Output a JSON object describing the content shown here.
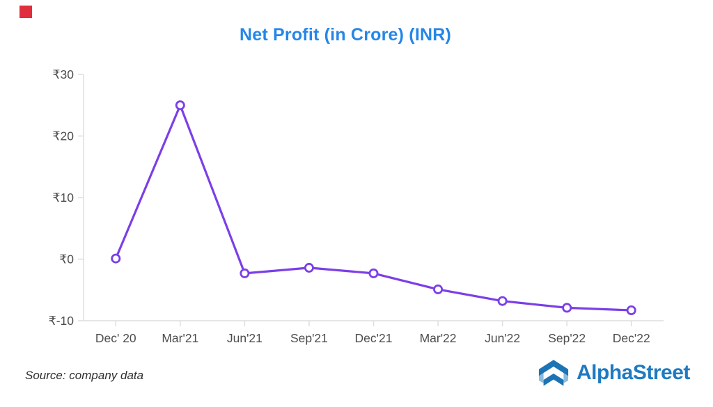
{
  "page": {
    "background": "#ffffff",
    "corner_marker_color": "#e12e3e"
  },
  "chart_data": {
    "type": "line",
    "title": "Net Profit (in Crore) (INR)",
    "categories": [
      "Dec' 20",
      "Mar'21",
      "Jun'21",
      "Sep'21",
      "Dec'21",
      "Mar'22",
      "Jun'22",
      "Sep'22",
      "Dec'22"
    ],
    "values": [
      0.1,
      25,
      -2.3,
      -1.4,
      -2.3,
      -4.9,
      -6.8,
      -7.9,
      -8.3
    ],
    "series_name": "Net Profit",
    "currency_prefix": "₹",
    "xlabel": "",
    "ylabel": "",
    "ylim": [
      -10,
      30
    ],
    "yticks": [
      {
        "value": 30,
        "label": "₹30"
      },
      {
        "value": 20,
        "label": "₹20"
      },
      {
        "value": 10,
        "label": "₹10"
      },
      {
        "value": 0,
        "label": "₹0"
      },
      {
        "value": -10,
        "label": "₹-10"
      }
    ],
    "grid": false,
    "legend": "none",
    "marker_style": "circle-hollow"
  },
  "footer": {
    "source_note": "Source: company data",
    "brand_name": "AlphaStreet"
  },
  "colors": {
    "title": "#2586e8",
    "axis_text": "#4d4d4d",
    "axis_line": "#dedede",
    "line": "#7b3fe8",
    "marker_fill": "#ffffff",
    "brand_blue": "#1e7ac2",
    "brand_dark": "#1d74b5",
    "brand_light": "#8fbcdd"
  }
}
